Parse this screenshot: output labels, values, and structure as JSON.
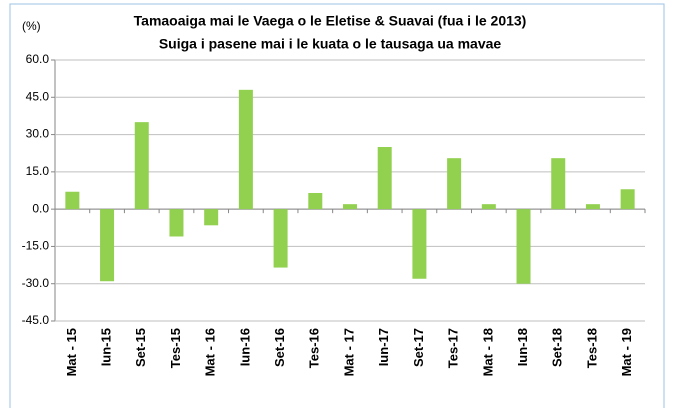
{
  "chart_data": {
    "type": "bar",
    "title": "Tamaoaiga mai le Vaega o  le Eletise & Suavai (fua i le 2013)",
    "subtitle": "Suiga i pasene mai i le kuata o le tausaga ua mavae",
    "y_label": "(%)",
    "categories": [
      "Mat - 15",
      "Iun-15",
      "Set-15",
      "Tes-15",
      "Mat - 16",
      "Iun-16",
      "Set-16",
      "Tes-16",
      "Mat - 17",
      "Iun-17",
      "Set-17",
      "Tes-17",
      "Mat - 18",
      "Iun-18",
      "Set-18",
      "Tes-18",
      "Mat - 19"
    ],
    "values": [
      7,
      -29,
      35,
      -11,
      -6.5,
      48,
      -23.5,
      6.5,
      2,
      25,
      -28,
      20.5,
      2,
      -30,
      20.5,
      2,
      8
    ],
    "color": "#92d050",
    "ylim": [
      -45,
      60
    ],
    "yticks": [
      {
        "value": -45,
        "label": "-45.0"
      },
      {
        "value": -30,
        "label": "-30.0"
      },
      {
        "value": -15,
        "label": "-15.0"
      },
      {
        "value": 0,
        "label": "0.0"
      },
      {
        "value": 15,
        "label": "15.0"
      },
      {
        "value": 30,
        "label": "30.0"
      },
      {
        "value": 45,
        "label": "45.0"
      },
      {
        "value": 60,
        "label": "60.0"
      }
    ],
    "grid": true
  }
}
